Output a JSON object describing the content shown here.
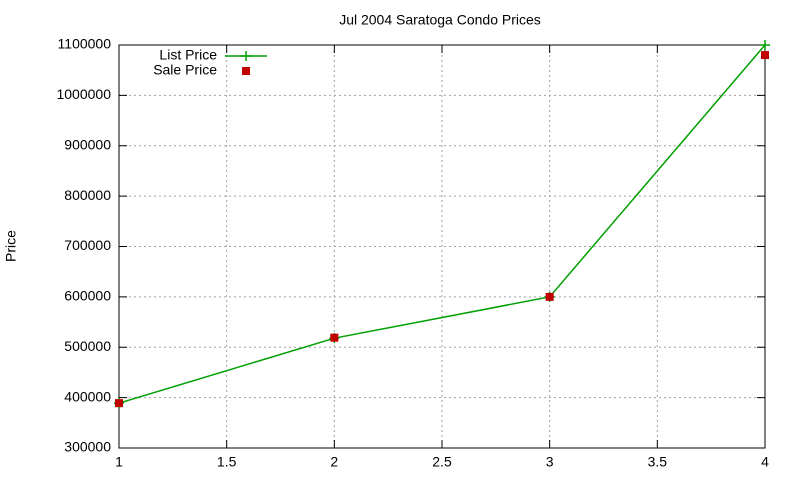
{
  "chart_data": {
    "type": "line",
    "title": "Jul 2004 Saratoga Condo Prices",
    "y_label": "Price",
    "x": [
      1,
      2,
      3,
      4
    ],
    "series": [
      {
        "name": "List Price",
        "color": "#00a000",
        "style": "linespoints",
        "values": [
          389000,
          518000,
          600000,
          1100000
        ]
      },
      {
        "name": "Sale Price",
        "color": "#c00000",
        "style": "points",
        "values": [
          389000,
          519000,
          600000,
          1080000
        ]
      }
    ],
    "xlim": [
      1,
      4
    ],
    "xticks": [
      1,
      1.5,
      2,
      2.5,
      3,
      3.5,
      4
    ],
    "ylim": [
      300000,
      1100000
    ],
    "yticks": [
      300000,
      400000,
      500000,
      600000,
      700000,
      800000,
      900000,
      1000000,
      1100000
    ],
    "grid": true,
    "legend": "top-left"
  }
}
